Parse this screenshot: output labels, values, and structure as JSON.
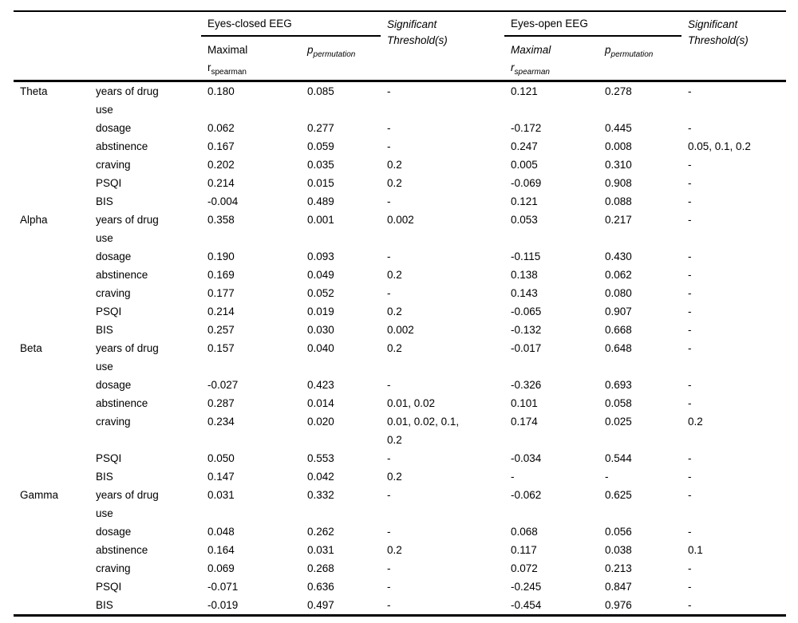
{
  "table": {
    "header": {
      "eyes_closed_label": "Eyes-closed EEG",
      "eyes_open_label": "Eyes-open EEG",
      "sig_threshold_label": "Significant Threshold(s)",
      "maximal_label": "Maximal",
      "r_base": "r",
      "r_sub": "spearman",
      "p_base": "p",
      "p_sub": "permutation"
    },
    "groups": [
      {
        "band": "Theta",
        "rows": [
          {
            "measure": "years of drug use",
            "ec_r": "0.180",
            "ec_p": "0.085",
            "ec_sig": "-",
            "eo_r": "0.121",
            "eo_p": "0.278",
            "eo_sig": "-"
          },
          {
            "measure": "dosage",
            "ec_r": "0.062",
            "ec_p": "0.277",
            "ec_sig": "-",
            "eo_r": "-0.172",
            "eo_p": "0.445",
            "eo_sig": "-"
          },
          {
            "measure": "abstinence",
            "ec_r": "0.167",
            "ec_p": "0.059",
            "ec_sig": "-",
            "eo_r": "0.247",
            "eo_p": "0.008",
            "eo_sig": "0.05, 0.1, 0.2"
          },
          {
            "measure": "craving",
            "ec_r": "0.202",
            "ec_p": "0.035",
            "ec_sig": "0.2",
            "eo_r": "0.005",
            "eo_p": "0.310",
            "eo_sig": "-"
          },
          {
            "measure": "PSQI",
            "ec_r": "0.214",
            "ec_p": "0.015",
            "ec_sig": "0.2",
            "eo_r": "-0.069",
            "eo_p": "0.908",
            "eo_sig": "-"
          },
          {
            "measure": "BIS",
            "ec_r": "-0.004",
            "ec_p": "0.489",
            "ec_sig": "-",
            "eo_r": "0.121",
            "eo_p": "0.088",
            "eo_sig": "-"
          }
        ]
      },
      {
        "band": "Alpha",
        "rows": [
          {
            "measure": "years of drug use",
            "ec_r": "0.358",
            "ec_p": "0.001",
            "ec_sig": "0.002",
            "eo_r": "0.053",
            "eo_p": "0.217",
            "eo_sig": "-"
          },
          {
            "measure": "dosage",
            "ec_r": "0.190",
            "ec_p": "0.093",
            "ec_sig": "-",
            "eo_r": "-0.115",
            "eo_p": "0.430",
            "eo_sig": "-"
          },
          {
            "measure": "abstinence",
            "ec_r": "0.169",
            "ec_p": "0.049",
            "ec_sig": "0.2",
            "eo_r": "0.138",
            "eo_p": "0.062",
            "eo_sig": "-"
          },
          {
            "measure": "craving",
            "ec_r": "0.177",
            "ec_p": "0.052",
            "ec_sig": "-",
            "eo_r": "0.143",
            "eo_p": "0.080",
            "eo_sig": "-"
          },
          {
            "measure": "PSQI",
            "ec_r": "0.214",
            "ec_p": "0.019",
            "ec_sig": "0.2",
            "eo_r": "-0.065",
            "eo_p": "0.907",
            "eo_sig": "-"
          },
          {
            "measure": "BIS",
            "ec_r": "0.257",
            "ec_p": "0.030",
            "ec_sig": "0.002",
            "eo_r": "-0.132",
            "eo_p": "0.668",
            "eo_sig": "-"
          }
        ]
      },
      {
        "band": "Beta",
        "rows": [
          {
            "measure": "years of drug use",
            "ec_r": "0.157",
            "ec_p": "0.040",
            "ec_sig": "0.2",
            "eo_r": "-0.017",
            "eo_p": "0.648",
            "eo_sig": "-"
          },
          {
            "measure": "dosage",
            "ec_r": "-0.027",
            "ec_p": "0.423",
            "ec_sig": "-",
            "eo_r": "-0.326",
            "eo_p": "0.693",
            "eo_sig": "-"
          },
          {
            "measure": "abstinence",
            "ec_r": "0.287",
            "ec_p": "0.014",
            "ec_sig": "0.01, 0.02",
            "eo_r": "0.101",
            "eo_p": "0.058",
            "eo_sig": "-"
          },
          {
            "measure": "craving",
            "ec_r": "0.234",
            "ec_p": "0.020",
            "ec_sig": "0.01, 0.02, 0.1, 0.2",
            "eo_r": "0.174",
            "eo_p": "0.025",
            "eo_sig": "0.2"
          },
          {
            "measure": "PSQI",
            "ec_r": "0.050",
            "ec_p": "0.553",
            "ec_sig": "-",
            "eo_r": "-0.034",
            "eo_p": "0.544",
            "eo_sig": "-"
          },
          {
            "measure": "BIS",
            "ec_r": "0.147",
            "ec_p": "0.042",
            "ec_sig": "0.2",
            "eo_r": "-",
            "eo_p": "-",
            "eo_sig": "-"
          }
        ]
      },
      {
        "band": "Gamma",
        "rows": [
          {
            "measure": "years of drug use",
            "ec_r": "0.031",
            "ec_p": "0.332",
            "ec_sig": "-",
            "eo_r": "-0.062",
            "eo_p": "0.625",
            "eo_sig": "-"
          },
          {
            "measure": "dosage",
            "ec_r": "0.048",
            "ec_p": "0.262",
            "ec_sig": "-",
            "eo_r": "0.068",
            "eo_p": "0.056",
            "eo_sig": "-"
          },
          {
            "measure": "abstinence",
            "ec_r": "0.164",
            "ec_p": "0.031",
            "ec_sig": "0.2",
            "eo_r": "0.117",
            "eo_p": "0.038",
            "eo_sig": "0.1"
          },
          {
            "measure": "craving",
            "ec_r": "0.069",
            "ec_p": "0.268",
            "ec_sig": "-",
            "eo_r": "0.072",
            "eo_p": "0.213",
            "eo_sig": "-"
          },
          {
            "measure": "PSQI",
            "ec_r": "-0.071",
            "ec_p": "0.636",
            "ec_sig": "-",
            "eo_r": "-0.245",
            "eo_p": "0.847",
            "eo_sig": "-"
          },
          {
            "measure": "BIS",
            "ec_r": "-0.019",
            "ec_p": "0.497",
            "ec_sig": "-",
            "eo_r": "-0.454",
            "eo_p": "0.976",
            "eo_sig": "-"
          }
        ]
      }
    ]
  }
}
